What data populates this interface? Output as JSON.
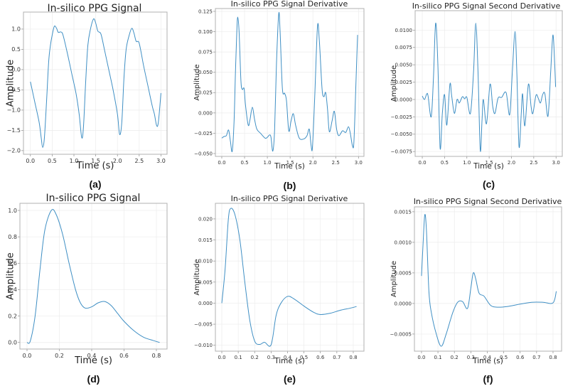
{
  "colors": {
    "line": "#3f8fc4",
    "grid": "#ececec",
    "frame": "#b0b0b0"
  },
  "chart_data": [
    {
      "type": "line",
      "panel": "(a)",
      "title": "In-silico PPG Signal",
      "xlabel": "Time (s)",
      "ylabel": "Amplitude",
      "xlim": [
        -0.16,
        3.14
      ],
      "ylim": [
        -2.09,
        1.42
      ],
      "grid": true,
      "xticks": [
        0,
        0.5,
        1,
        1.5,
        2,
        2.5,
        3
      ],
      "xtick_labels": [
        "0.0",
        "0.5",
        "1.0",
        "1.5",
        "2.0",
        "2.5",
        "3.0"
      ],
      "yticks": [
        -2,
        -1.5,
        -1,
        -0.5,
        0,
        0.5,
        1
      ],
      "ytick_labels": [
        "−2.0",
        "−1.5",
        "−1.0",
        "−0.5",
        "0.0",
        "0.5",
        "1.0"
      ],
      "x": [
        0,
        0.1,
        0.2,
        0.25,
        0.28,
        0.32,
        0.37,
        0.42,
        0.46,
        0.5,
        0.55,
        0.6,
        0.64,
        0.7,
        0.75,
        0.85,
        0.95,
        1.05,
        1.12,
        1.18,
        1.22,
        1.27,
        1.32,
        1.38,
        1.45,
        1.5,
        1.55,
        1.62,
        1.7,
        1.8,
        1.9,
        2.0,
        2.05,
        2.1,
        2.15,
        2.2,
        2.27,
        2.33,
        2.38,
        2.43,
        2.5,
        2.6,
        2.7,
        2.8,
        2.85,
        2.9,
        2.94,
        3.0
      ],
      "y": [
        -0.3,
        -0.8,
        -1.3,
        -1.7,
        -1.92,
        -1.7,
        -0.8,
        0.2,
        0.6,
        0.85,
        1.07,
        1.02,
        0.92,
        0.93,
        0.85,
        0.4,
        -0.1,
        -0.6,
        -1.1,
        -1.68,
        -1.4,
        -0.3,
        0.6,
        1.0,
        1.25,
        1.15,
        0.95,
        0.88,
        0.5,
        0.0,
        -0.5,
        -1.1,
        -1.6,
        -1.3,
        -0.2,
        0.5,
        0.85,
        1.02,
        0.9,
        0.7,
        0.65,
        0.1,
        -0.4,
        -0.9,
        -1.1,
        -1.38,
        -1.3,
        -0.58
      ]
    },
    {
      "type": "line",
      "panel": "(b)",
      "title": "In-silico PPG Signal Derivative",
      "xlabel": "Time (s)",
      "ylabel": "Amplitude",
      "xlim": [
        -0.14,
        3.12
      ],
      "ylim": [
        -0.0535,
        0.1285
      ],
      "grid": true,
      "xticks": [
        0,
        0.5,
        1,
        1.5,
        2,
        2.5,
        3
      ],
      "xtick_labels": [
        "0.0",
        "0.5",
        "1.0",
        "1.5",
        "2.0",
        "2.5",
        "3.0"
      ],
      "yticks": [
        -0.05,
        -0.025,
        0,
        0.025,
        0.05,
        0.075,
        0.1,
        0.125
      ],
      "ytick_labels": [
        "−0.050",
        "−0.025",
        "0.000",
        "0.025",
        "0.050",
        "0.075",
        "0.100",
        "0.125"
      ],
      "x": [
        0,
        0.05,
        0.1,
        0.15,
        0.19,
        0.23,
        0.27,
        0.3,
        0.33,
        0.35,
        0.38,
        0.42,
        0.45,
        0.49,
        0.52,
        0.58,
        0.62,
        0.67,
        0.72,
        0.77,
        0.85,
        0.95,
        1.0,
        1.05,
        1.08,
        1.12,
        1.16,
        1.2,
        1.25,
        1.28,
        1.33,
        1.38,
        1.42,
        1.47,
        1.52,
        1.57,
        1.62,
        1.7,
        1.8,
        1.87,
        1.92,
        1.96,
        1.99,
        2.04,
        2.1,
        2.14,
        2.2,
        2.24,
        2.28,
        2.32,
        2.36,
        2.42,
        2.47,
        2.52,
        2.57,
        2.65,
        2.72,
        2.78,
        2.82,
        2.87,
        2.9,
        2.94,
        2.98
      ],
      "y": [
        -0.031,
        -0.029,
        -0.028,
        -0.021,
        -0.035,
        -0.047,
        -0.01,
        0.05,
        0.1,
        0.118,
        0.1,
        0.04,
        0.029,
        0.03,
        0.01,
        -0.015,
        -0.008,
        0.007,
        -0.008,
        -0.02,
        -0.025,
        -0.031,
        -0.03,
        -0.027,
        -0.03,
        -0.047,
        -0.02,
        0.06,
        0.122,
        0.1,
        0.03,
        0.024,
        0.015,
        -0.022,
        -0.01,
        -0.001,
        -0.015,
        -0.031,
        -0.032,
        -0.028,
        -0.02,
        -0.04,
        -0.042,
        0.02,
        0.106,
        0.09,
        0.03,
        0.02,
        0.025,
        0.005,
        -0.023,
        -0.01,
        0.002,
        -0.02,
        -0.028,
        -0.022,
        -0.024,
        -0.017,
        -0.025,
        -0.041,
        -0.035,
        0.03,
        0.096
      ]
    },
    {
      "type": "line",
      "panel": "(c)",
      "title": "In-silico PPG Signal Second Derivative",
      "xlabel": "Time (s)",
      "ylabel": "Amplitude",
      "xlim": [
        -0.16,
        3.14
      ],
      "ylim": [
        -0.0082,
        0.0128
      ],
      "grid": true,
      "xticks": [
        0,
        0.5,
        1,
        1.5,
        2,
        2.5,
        3
      ],
      "xtick_labels": [
        "0.0",
        "0.5",
        "1.0",
        "1.5",
        "2.0",
        "2.5",
        "3.0"
      ],
      "yticks": [
        -0.0075,
        -0.005,
        -0.0025,
        0,
        0.0025,
        0.005,
        0.0075,
        0.01
      ],
      "ytick_labels": [
        "−0.0075",
        "−0.0050",
        "−0.0025",
        "0.0000",
        "0.0025",
        "0.0050",
        "0.0075",
        "0.0100"
      ],
      "x": [
        0,
        0.05,
        0.1,
        0.13,
        0.2,
        0.25,
        0.3,
        0.35,
        0.4,
        0.45,
        0.5,
        0.55,
        0.62,
        0.66,
        0.72,
        0.78,
        0.83,
        0.9,
        0.95,
        1.0,
        1.08,
        1.15,
        1.2,
        1.25,
        1.3,
        1.34,
        1.37,
        1.44,
        1.52,
        1.58,
        1.63,
        1.7,
        1.78,
        1.88,
        1.96,
        2.02,
        2.08,
        2.12,
        2.17,
        2.22,
        2.25,
        2.3,
        2.38,
        2.44,
        2.48,
        2.55,
        2.6,
        2.65,
        2.7,
        2.75,
        2.82,
        2.88,
        2.93,
        2.97,
        2.99
      ],
      "y": [
        0.0005,
        0,
        0.0008,
        0.0005,
        -0.0025,
        0.003,
        0.011,
        0.005,
        -0.007,
        -0.002,
        0.0007,
        -0.0037,
        0.0022,
        0.0005,
        -0.002,
        0,
        -0.0005,
        0.0004,
        0.0001,
        0.0003,
        -0.002,
        0.004,
        0.011,
        0.004,
        -0.0073,
        -0.003,
        0,
        -0.0035,
        0.0022,
        -0.001,
        -0.002,
        0.0002,
        0.0003,
        0.001,
        -0.0022,
        0.004,
        0.0098,
        0.004,
        -0.0068,
        -0.002,
        0.0008,
        -0.0038,
        0.0022,
        -0.001,
        -0.002,
        0.0006,
        0.0002,
        -0.0005,
        0.0007,
        0.0008,
        -0.0024,
        0.004,
        0.0093,
        0.005,
        0.0018
      ]
    },
    {
      "type": "line",
      "panel": "(d)",
      "title": "In-silico PPG Signal",
      "xlabel": "Time (s)",
      "ylabel": "Amplitude",
      "xlim": [
        -0.044,
        0.866
      ],
      "ylim": [
        -0.05,
        1.054
      ],
      "grid": true,
      "xticks": [
        0,
        0.2,
        0.4,
        0.6,
        0.8
      ],
      "xtick_labels": [
        "0.0",
        "0.2",
        "0.4",
        "0.6",
        "0.8"
      ],
      "yticks": [
        0,
        0.2,
        0.4,
        0.6,
        0.8,
        1.0
      ],
      "ytick_labels": [
        "0.0",
        "0.2",
        "0.4",
        "0.6",
        "0.8",
        "1.0"
      ],
      "x": [
        0,
        0.02,
        0.05,
        0.08,
        0.11,
        0.15,
        0.18,
        0.22,
        0.26,
        0.3,
        0.33,
        0.36,
        0.4,
        0.44,
        0.48,
        0.52,
        0.56,
        0.6,
        0.66,
        0.72,
        0.78,
        0.82
      ],
      "y": [
        0,
        0.01,
        0.2,
        0.55,
        0.85,
        1.0,
        0.97,
        0.82,
        0.6,
        0.4,
        0.3,
        0.26,
        0.27,
        0.3,
        0.31,
        0.28,
        0.22,
        0.16,
        0.09,
        0.04,
        0.015,
        0
      ]
    },
    {
      "type": "line",
      "panel": "(e)",
      "title": "In-silico PPG Signal Derivative",
      "xlabel": "Time (s)",
      "ylabel": "Amplitude",
      "xlim": [
        -0.039,
        0.865
      ],
      "ylim": [
        -0.0114,
        0.0237
      ],
      "grid": true,
      "xticks": [
        0,
        0.1,
        0.2,
        0.3,
        0.4,
        0.5,
        0.6,
        0.7,
        0.8
      ],
      "xtick_labels": [
        "0.0",
        "0.1",
        "0.2",
        "0.3",
        "0.4",
        "0.5",
        "0.6",
        "0.7",
        "0.8"
      ],
      "yticks": [
        -0.01,
        -0.005,
        0,
        0.005,
        0.01,
        0.015,
        0.02
      ],
      "ytick_labels": [
        "−0.010",
        "−0.005",
        "0.000",
        "0.005",
        "0.010",
        "0.015",
        "0.020"
      ],
      "x": [
        0,
        0.02,
        0.04,
        0.055,
        0.08,
        0.11,
        0.14,
        0.17,
        0.2,
        0.23,
        0.26,
        0.3,
        0.33,
        0.36,
        0.4,
        0.44,
        0.5,
        0.56,
        0.6,
        0.66,
        0.72,
        0.78,
        0.82
      ],
      "y": [
        0,
        0.008,
        0.02,
        0.0225,
        0.021,
        0.015,
        0.005,
        -0.004,
        -0.009,
        -0.0098,
        -0.0093,
        -0.0099,
        -0.003,
        0,
        0.0016,
        0.001,
        -0.0007,
        -0.0022,
        -0.0027,
        -0.0024,
        -0.0017,
        -0.0012,
        -0.0008
      ]
    },
    {
      "type": "line",
      "panel": "(f)",
      "title": "In-silico PPG Signal Second Derivative",
      "xlabel": "Time (s)",
      "ylabel": "Amplitude",
      "xlim": [
        -0.043,
        0.852
      ],
      "ylim": [
        -0.00078,
        0.00158
      ],
      "grid": true,
      "xticks": [
        0,
        0.1,
        0.2,
        0.3,
        0.4,
        0.5,
        0.6,
        0.7,
        0.8
      ],
      "xtick_labels": [
        "0.0",
        "0.1",
        "0.2",
        "0.3",
        "0.4",
        "0.5",
        "0.6",
        "0.7",
        "0.8"
      ],
      "yticks": [
        -0.0005,
        0,
        0.0005,
        0.001,
        0.0015
      ],
      "ytick_labels": [
        "−0.0005",
        "0.0000",
        "0.0005",
        "0.0010",
        "0.0015"
      ],
      "x": [
        0,
        0.01,
        0.02,
        0.03,
        0.045,
        0.06,
        0.09,
        0.12,
        0.15,
        0.19,
        0.22,
        0.25,
        0.28,
        0.3,
        0.315,
        0.33,
        0.35,
        0.38,
        0.42,
        0.46,
        0.52,
        0.6,
        0.67,
        0.74,
        0.8,
        0.82
      ],
      "y": [
        0.00045,
        0.001,
        0.00145,
        0.0012,
        0.0002,
        -0.00015,
        -0.0005,
        -0.0007,
        -0.0005,
        -0.00015,
        2e-05,
        3e-05,
        -8e-05,
        0.00025,
        0.0005,
        0.0004,
        0.00017,
        0.00012,
        -3e-05,
        -6e-05,
        -5e-05,
        -1e-05,
        2e-05,
        2e-05,
        1e-05,
        0.0002
      ]
    }
  ]
}
